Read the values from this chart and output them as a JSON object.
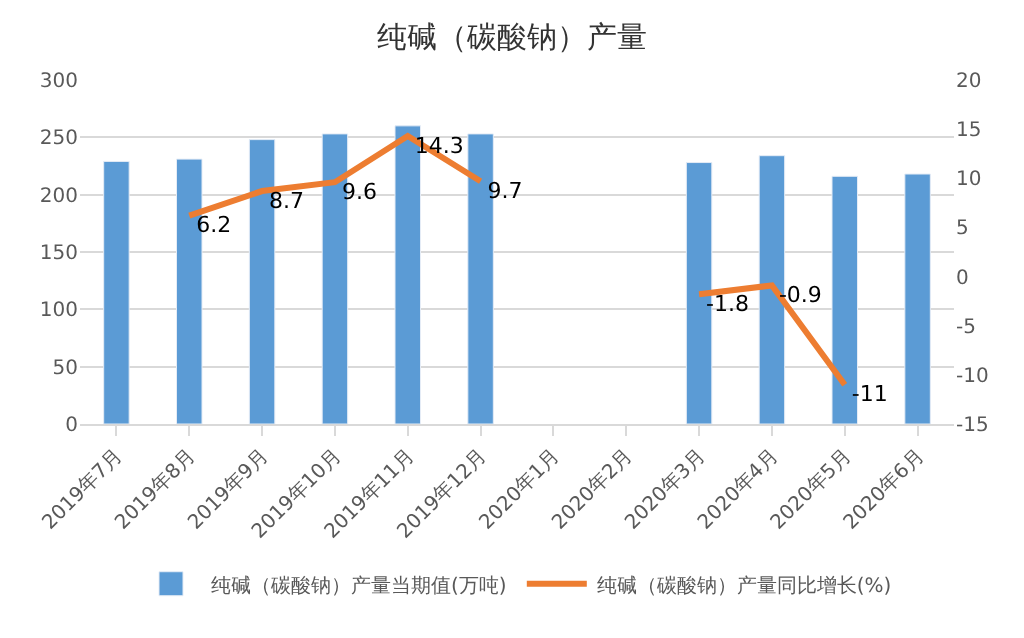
{
  "chart_data": {
    "type": "bar",
    "title": "纯碱（碳酸钠）产量",
    "categories": [
      "2019年7月",
      "2019年8月",
      "2019年9月",
      "2019年10月",
      "2019年11月",
      "2019年12月",
      "2020年1月",
      "2020年2月",
      "2020年3月",
      "2020年4月",
      "2020年5月",
      "2020年6月"
    ],
    "series": [
      {
        "name": "纯碱（碳酸钠）产量当期值(万吨)",
        "color": "#5b9bd5",
        "values": [
          229,
          231,
          248,
          253,
          260,
          253,
          null,
          null,
          228,
          234,
          216,
          218
        ]
      },
      {
        "name": "纯碱（碳酸钠）产量同比增长(%)",
        "type": "line",
        "axis": "y2",
        "color": "#ed7d31",
        "values": [
          null,
          6.2,
          8.7,
          9.6,
          14.3,
          9.7,
          null,
          null,
          -1.8,
          -0.9,
          -11,
          null
        ],
        "value_labels": [
          null,
          "6.2",
          "8.7",
          "9.6",
          "14.3",
          "9.7",
          null,
          null,
          "-1.8",
          "-0.9",
          "-11",
          null
        ]
      }
    ],
    "ylim": [
      0,
      300
    ],
    "yticks": [
      0,
      50,
      100,
      150,
      200,
      250,
      300
    ],
    "y2lim": [
      -15,
      20
    ],
    "y2ticks": [
      -15,
      -10,
      -5,
      0,
      5,
      10,
      15,
      20
    ],
    "grid": "y",
    "legend": "bottom",
    "marker": "none"
  }
}
